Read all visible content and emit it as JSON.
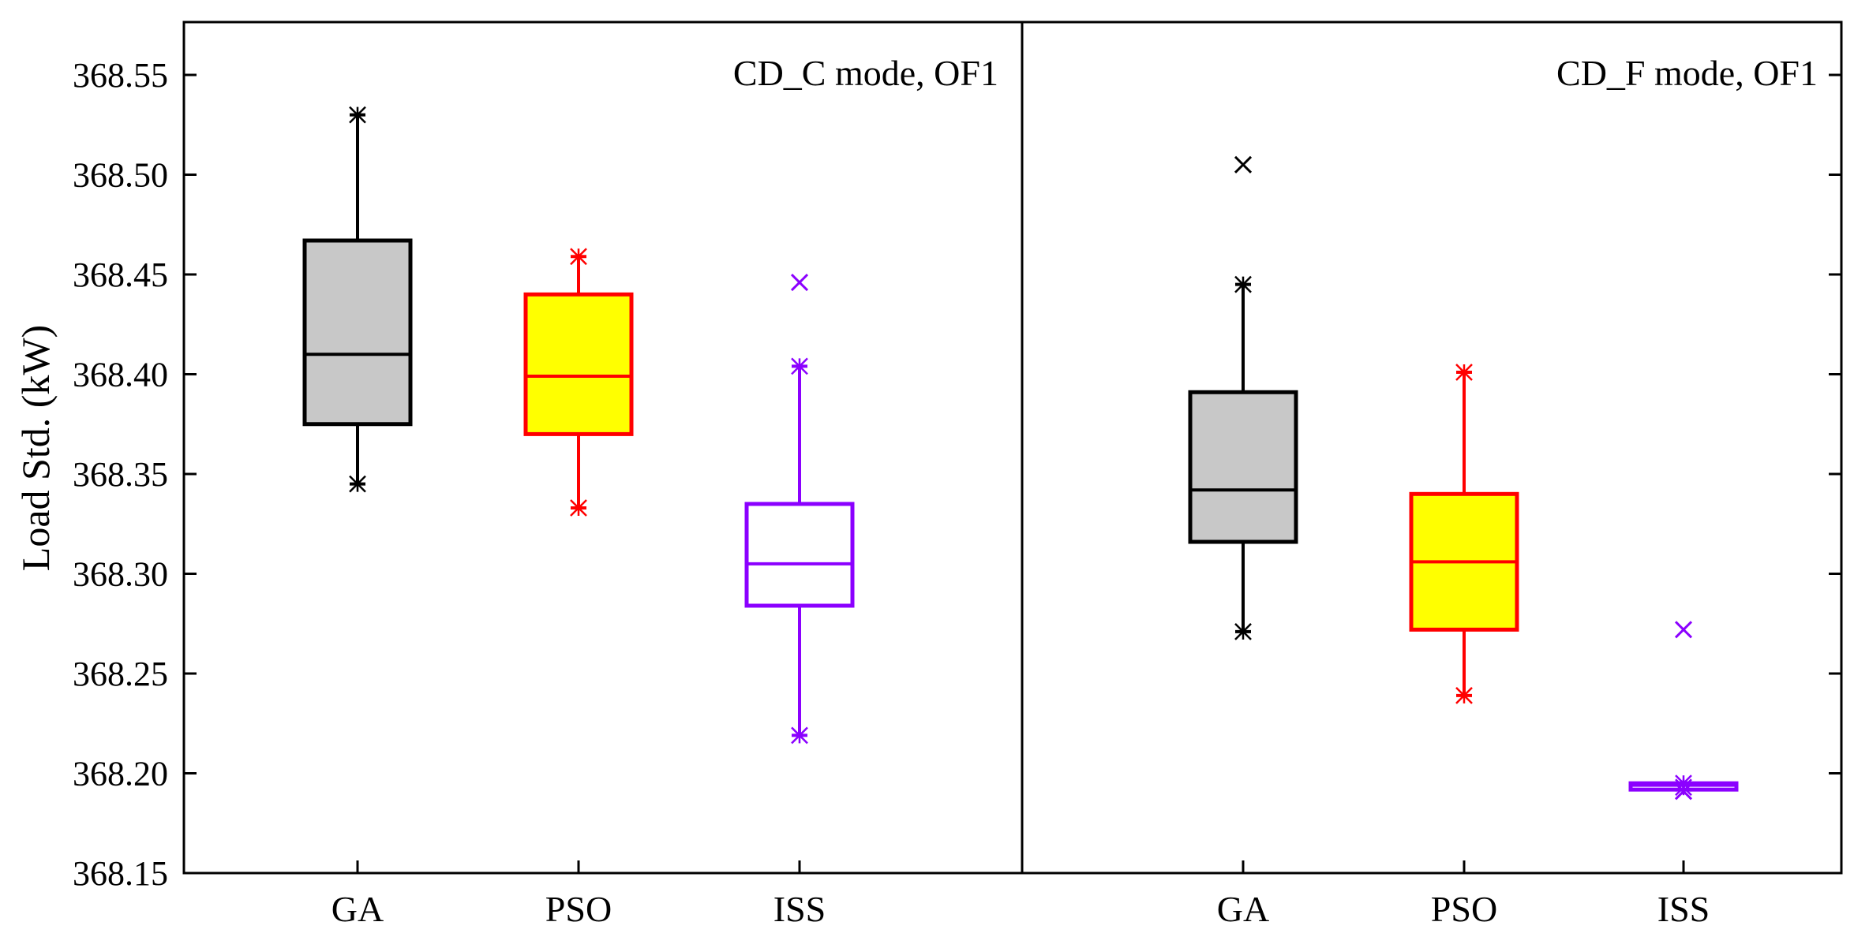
{
  "chart_data": {
    "type": "box",
    "ylabel": "Load Std. (kW)",
    "ylim": [
      368.15,
      368.57
    ],
    "yticks": [
      "368.15",
      "368.20",
      "368.25",
      "368.30",
      "368.35",
      "368.40",
      "368.45",
      "368.50",
      "368.55"
    ],
    "panels": [
      {
        "title": "CD_C mode, OF1",
        "categories": [
          "GA",
          "PSO",
          "ISS"
        ],
        "boxes": [
          {
            "name": "GA",
            "whisker_low": 368.345,
            "q1": 368.375,
            "median": 368.41,
            "q3": 368.467,
            "whisker_high": 368.53,
            "outliers": [],
            "color": "#000000",
            "fill": "#c8c8c8"
          },
          {
            "name": "PSO",
            "whisker_low": 368.333,
            "q1": 368.37,
            "median": 368.399,
            "q3": 368.44,
            "whisker_high": 368.459,
            "outliers": [],
            "color": "#ff0000",
            "fill": "#ffff00"
          },
          {
            "name": "ISS",
            "whisker_low": 368.219,
            "q1": 368.284,
            "median": 368.305,
            "q3": 368.335,
            "whisker_high": 368.404,
            "outliers": [
              368.446
            ],
            "color": "#8b00ff",
            "fill": "#ffffff"
          }
        ]
      },
      {
        "title": "CD_F mode, OF1",
        "categories": [
          "GA",
          "PSO",
          "ISS"
        ],
        "boxes": [
          {
            "name": "GA",
            "whisker_low": 368.271,
            "q1": 368.316,
            "median": 368.342,
            "q3": 368.391,
            "whisker_high": 368.445,
            "outliers": [
              368.505
            ],
            "color": "#000000",
            "fill": "#c8c8c8"
          },
          {
            "name": "PSO",
            "whisker_low": 368.239,
            "q1": 368.272,
            "median": 368.306,
            "q3": 368.34,
            "whisker_high": 368.401,
            "outliers": [],
            "color": "#ff0000",
            "fill": "#ffff00"
          },
          {
            "name": "ISS",
            "whisker_low": 368.193,
            "q1": 368.193,
            "median": 368.194,
            "q3": 368.195,
            "whisker_high": 368.195,
            "outliers": [
              368.272,
              368.191
            ],
            "color": "#8b00ff",
            "fill": "#ffffff"
          }
        ]
      }
    ]
  }
}
